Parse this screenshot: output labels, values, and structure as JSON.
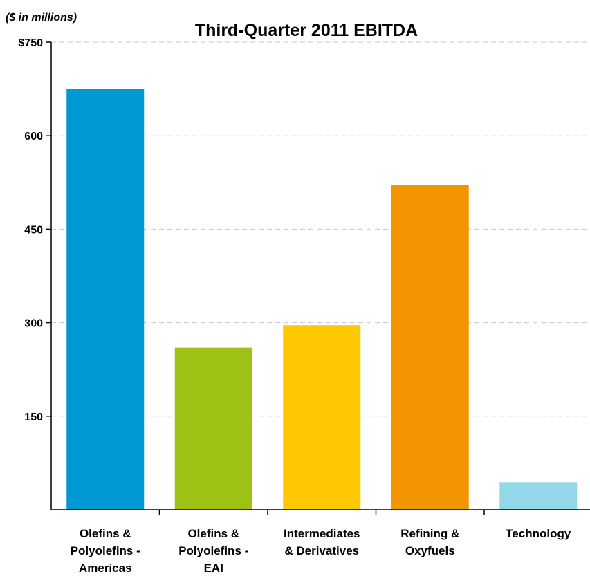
{
  "chart_data": {
    "type": "bar",
    "title": "Third-Quarter 2011 EBITDA",
    "units_label": "($ in millions)",
    "xlabel": "",
    "ylabel": "",
    "ylim": [
      0,
      750
    ],
    "yticks": [
      150,
      300,
      450,
      600,
      750
    ],
    "ytick_labels": [
      "150",
      "300",
      "450",
      "600",
      "$750"
    ],
    "grid": true,
    "categories": [
      [
        "Olefins &",
        "Polyolefins -",
        "Americas"
      ],
      [
        "Olefins &",
        "Polyolefins -",
        "EAI"
      ],
      [
        "Intermediates",
        "& Derivatives"
      ],
      [
        "Refining &",
        "Oxyfuels"
      ],
      [
        "Technology"
      ]
    ],
    "values": [
      675,
      260,
      296,
      521,
      44
    ],
    "colors": [
      "#0099D5",
      "#9DC214",
      "#FFC800",
      "#F29500",
      "#92D8E8"
    ]
  }
}
